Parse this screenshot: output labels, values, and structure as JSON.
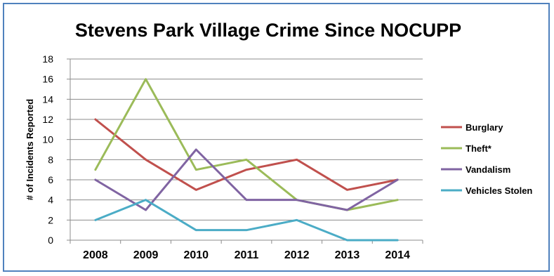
{
  "chart_data": {
    "type": "line",
    "title": "Stevens Park Village Crime Since NOCUPP",
    "xlabel": "",
    "ylabel": "# of Incidents Reported",
    "categories": [
      "2008",
      "2009",
      "2010",
      "2011",
      "2012",
      "2013",
      "2014"
    ],
    "ylim": [
      0,
      18
    ],
    "yticks": [
      0,
      2,
      4,
      6,
      8,
      10,
      12,
      14,
      16,
      18
    ],
    "grid": true,
    "legend_position": "right",
    "series": [
      {
        "name": "Burglary",
        "color": "#c0504d",
        "values": [
          12,
          8,
          5,
          7,
          8,
          5,
          6
        ]
      },
      {
        "name": "Theft*",
        "color": "#9bbb59",
        "values": [
          7,
          16,
          7,
          8,
          4,
          3,
          4
        ]
      },
      {
        "name": "Vandalism",
        "color": "#8064a2",
        "values": [
          6,
          3,
          9,
          4,
          4,
          3,
          6
        ]
      },
      {
        "name": "Vehicles Stolen",
        "color": "#4bacc6",
        "values": [
          2,
          4,
          1,
          1,
          2,
          0,
          0
        ]
      }
    ]
  }
}
